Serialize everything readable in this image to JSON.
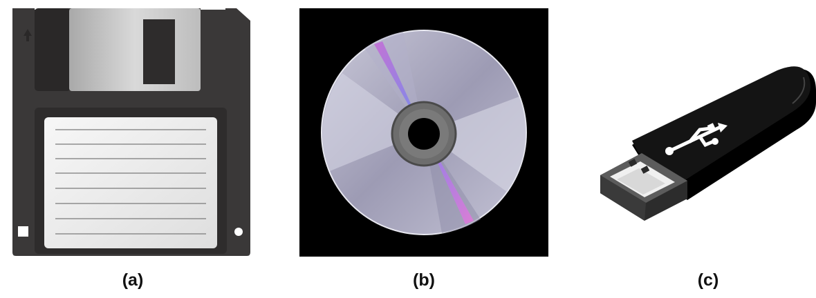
{
  "figure": {
    "panels": [
      {
        "caption": "(a)",
        "icon": "floppy-disk-icon"
      },
      {
        "caption": "(b)",
        "icon": "compact-disc-icon"
      },
      {
        "caption": "(c)",
        "icon": "usb-flash-drive-icon"
      }
    ]
  },
  "colors": {
    "floppy_body": "#3a3838",
    "floppy_shutter": "#c4c4c4",
    "floppy_label": "#ececec",
    "cd_background": "#000000",
    "cd_surface": "#b6b5c9",
    "usb_body": "#0d0d0d",
    "usb_connector": "#5c5c5c"
  }
}
